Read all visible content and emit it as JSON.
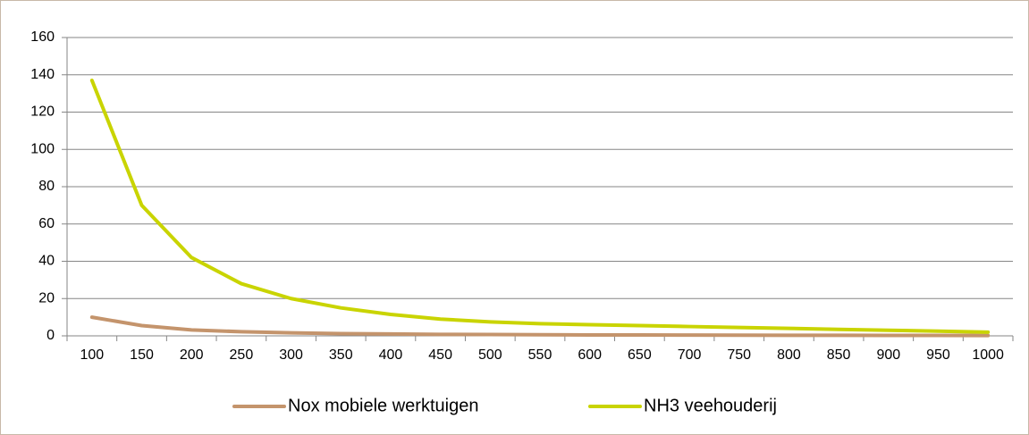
{
  "chart_data": {
    "type": "line",
    "categories": [
      "100",
      "150",
      "200",
      "250",
      "300",
      "350",
      "400",
      "450",
      "500",
      "550",
      "600",
      "650",
      "700",
      "750",
      "800",
      "850",
      "900",
      "950",
      "1000"
    ],
    "series": [
      {
        "name": "Nox mobiele werktuigen",
        "color": "#c4946c",
        "values": [
          10,
          5.5,
          3.2,
          2.2,
          1.6,
          1.2,
          1,
          0.8,
          0.7,
          0.6,
          0.5,
          0.45,
          0.4,
          0.35,
          0.3,
          0.3,
          0.25,
          0.25,
          0.2
        ]
      },
      {
        "name": "NH3 veehouderij",
        "color": "#c9d400",
        "values": [
          137,
          70,
          42,
          28,
          20,
          15,
          11.5,
          9,
          7.5,
          6.5,
          6,
          5.5,
          5,
          4.5,
          4,
          3.5,
          3,
          2.5,
          2
        ]
      }
    ],
    "ylim": [
      0,
      160
    ],
    "yticks": [
      0,
      20,
      40,
      60,
      80,
      100,
      120,
      140,
      160
    ],
    "grid": true,
    "legend": "bottom"
  }
}
